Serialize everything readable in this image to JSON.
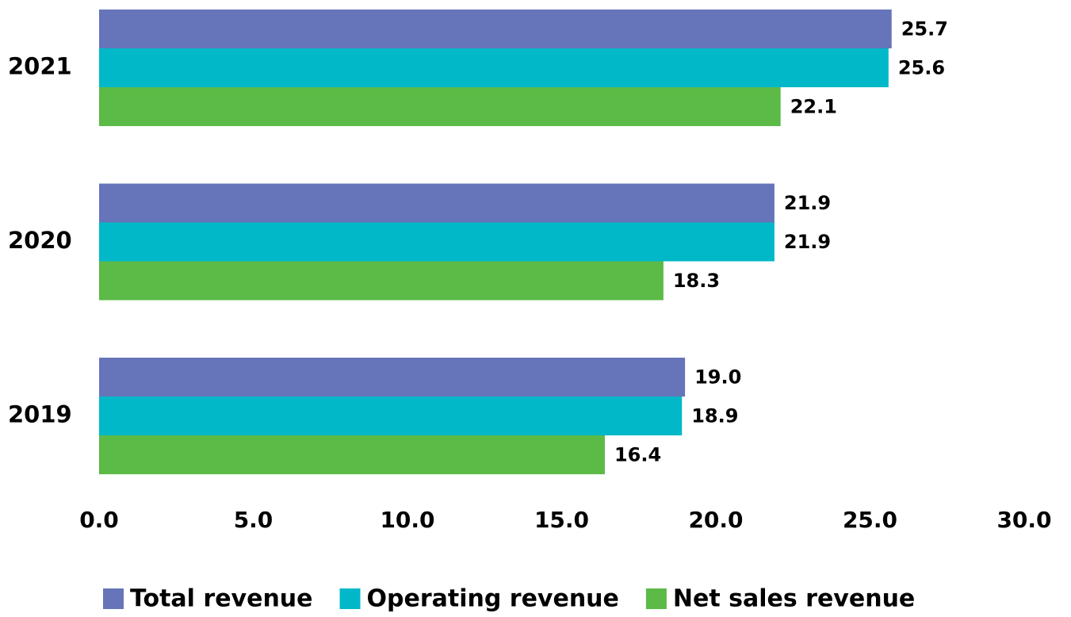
{
  "chart_data": {
    "type": "hbar",
    "categories": [
      "2021",
      "2020",
      "2019"
    ],
    "series": [
      {
        "name": "Total revenue",
        "color": "#6674b9",
        "values": [
          25.7,
          21.9,
          19.0
        ],
        "value_labels": [
          "25.7",
          "21.9",
          "19.0"
        ]
      },
      {
        "name": "Operating revenue",
        "color": "#00b8c8",
        "values": [
          25.6,
          21.9,
          18.9
        ],
        "value_labels": [
          "25.6",
          "21.9",
          "18.9"
        ]
      },
      {
        "name": "Net sales revenue",
        "color": "#5cba47",
        "values": [
          22.1,
          18.3,
          16.4
        ],
        "value_labels": [
          "22.1",
          "18.3",
          "16.4"
        ]
      }
    ],
    "xlim": [
      0,
      30
    ],
    "xticks": [
      {
        "value": 0,
        "label": "0.0"
      },
      {
        "value": 5,
        "label": "5.0"
      },
      {
        "value": 10,
        "label": "10.0"
      },
      {
        "value": 15,
        "label": "15.0"
      },
      {
        "value": 20,
        "label": "20.0"
      },
      {
        "value": 25,
        "label": "25.0"
      },
      {
        "value": 30,
        "label": "30.0"
      }
    ],
    "grid": false,
    "legend": "bottom"
  }
}
